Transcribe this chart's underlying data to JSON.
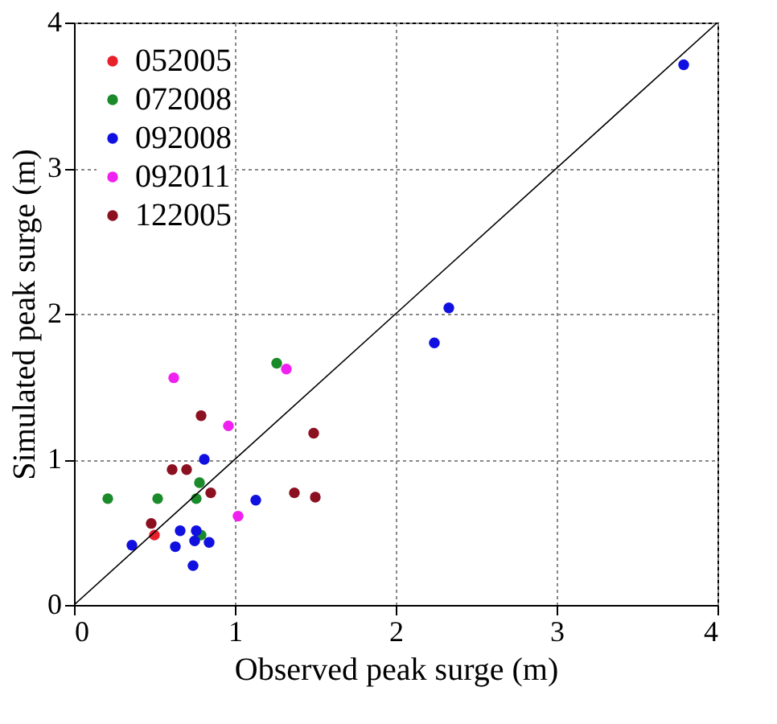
{
  "chart_data": {
    "type": "scatter",
    "xlabel": "Observed peak surge (m)",
    "ylabel": "Simulated peak surge (m)",
    "xlim": [
      0,
      4
    ],
    "ylim": [
      0,
      4
    ],
    "xticks": [
      0,
      1,
      2,
      3,
      4
    ],
    "yticks": [
      0,
      1,
      2,
      3,
      4
    ],
    "grid": true,
    "legend": "top left",
    "marker": "circle",
    "series": [
      {
        "name": "052005",
        "color": "#e8202a",
        "x": [
          0.5
        ],
        "values": [
          0.48
        ]
      },
      {
        "name": "072008",
        "color": "#1a8a2a",
        "x": [
          0.21,
          0.52,
          0.76,
          0.78,
          0.79,
          1.26
        ],
        "values": [
          0.73,
          0.73,
          0.73,
          0.84,
          0.48,
          1.66
        ]
      },
      {
        "name": "092008",
        "color": "#1010e0",
        "x": [
          0.36,
          0.63,
          0.66,
          0.76,
          0.75,
          0.84,
          0.74,
          0.81,
          1.13,
          2.24,
          2.33,
          3.79
        ],
        "values": [
          0.41,
          0.4,
          0.51,
          0.51,
          0.44,
          0.43,
          0.27,
          1.0,
          0.72,
          1.8,
          2.04,
          3.71
        ]
      },
      {
        "name": "092011",
        "color": "#f020f0",
        "x": [
          0.62,
          0.96,
          1.32,
          1.02
        ],
        "values": [
          1.56,
          1.23,
          1.62,
          0.61
        ]
      },
      {
        "name": "122005",
        "color": "#8b1020",
        "x": [
          0.48,
          0.61,
          0.7,
          0.85,
          0.79,
          1.37,
          1.49,
          1.5
        ],
        "values": [
          0.56,
          0.93,
          0.93,
          0.77,
          1.3,
          0.77,
          1.18,
          0.74
        ]
      },
      {
        "type": "line",
        "color": "#000000",
        "x": [
          0,
          4
        ],
        "values": [
          0,
          4
        ],
        "line_style": "solid",
        "marker": "none"
      }
    ]
  }
}
